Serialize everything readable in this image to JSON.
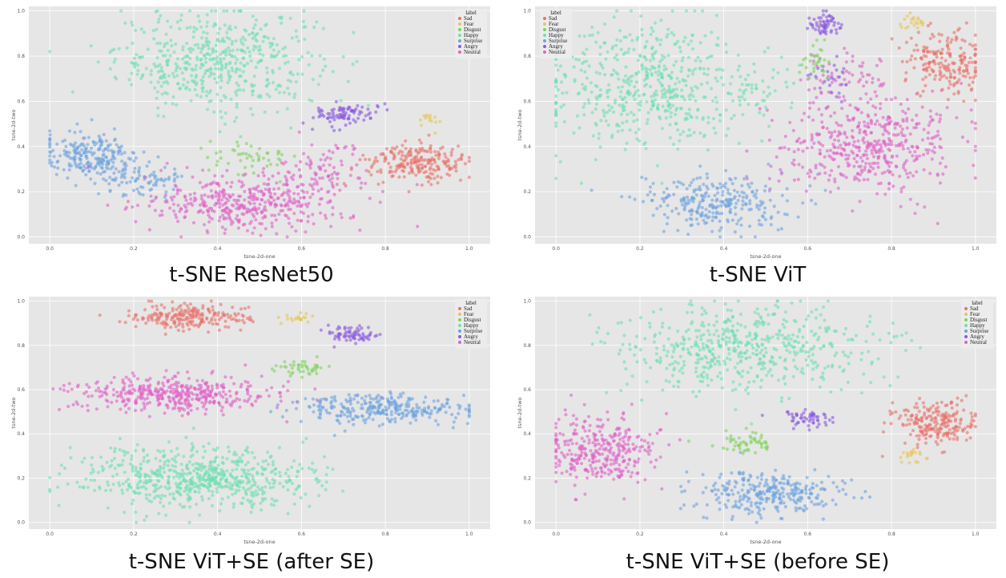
{
  "legend": {
    "title": "label",
    "classes": [
      "Sad",
      "Fear",
      "Disgust",
      "Happy",
      "Surprise",
      "Angry",
      "Neutral"
    ],
    "colors": [
      "#e8736b",
      "#e6c65a",
      "#7fd35f",
      "#6fe0b3",
      "#6ea3e0",
      "#8a5ae0",
      "#e062c8"
    ]
  },
  "chart_data": [
    {
      "type": "scatter",
      "caption": "t-SNE ResNet50",
      "xlabel": "tsne-2d-one",
      "ylabel": "tsne-2d-two",
      "xlim": [
        -0.05,
        1.05
      ],
      "ylim": [
        -0.03,
        1.02
      ],
      "xticks": [
        "0.0",
        "0.2",
        "0.4",
        "0.6",
        "0.8",
        "1.0"
      ],
      "yticks": [
        "0.0",
        "0.2",
        "0.4",
        "0.6",
        "0.8",
        "1.0"
      ],
      "grid": true,
      "legend_position": "top-right",
      "clusters": [
        {
          "label": "Happy",
          "cx": 0.4,
          "cy": 0.78,
          "sx": 0.12,
          "sy": 0.11,
          "n": 520
        },
        {
          "label": "Surprise",
          "cx": 0.1,
          "cy": 0.36,
          "sx": 0.06,
          "sy": 0.05,
          "n": 230
        },
        {
          "label": "Surprise",
          "cx": 0.22,
          "cy": 0.24,
          "sx": 0.05,
          "sy": 0.04,
          "n": 80
        },
        {
          "label": "Neutral",
          "cx": 0.47,
          "cy": 0.15,
          "sx": 0.12,
          "sy": 0.06,
          "n": 420
        },
        {
          "label": "Neutral",
          "cx": 0.66,
          "cy": 0.3,
          "sx": 0.06,
          "sy": 0.05,
          "n": 90
        },
        {
          "label": "Sad",
          "cx": 0.88,
          "cy": 0.33,
          "sx": 0.06,
          "sy": 0.04,
          "n": 220
        },
        {
          "label": "Angry",
          "cx": 0.7,
          "cy": 0.54,
          "sx": 0.04,
          "sy": 0.025,
          "n": 90
        },
        {
          "label": "Fear",
          "cx": 0.91,
          "cy": 0.52,
          "sx": 0.015,
          "sy": 0.02,
          "n": 14
        },
        {
          "label": "Disgust",
          "cx": 0.48,
          "cy": 0.36,
          "sx": 0.05,
          "sy": 0.04,
          "n": 50
        }
      ]
    },
    {
      "type": "scatter",
      "caption": "t-SNE ViT",
      "xlabel": "tsne-2d-one",
      "ylabel": "tsne-2d-two",
      "xlim": [
        -0.05,
        1.05
      ],
      "ylim": [
        -0.03,
        1.02
      ],
      "xticks": [
        "0.0",
        "0.2",
        "0.4",
        "0.6",
        "0.8",
        "1.0"
      ],
      "yticks": [
        "0.0",
        "0.2",
        "0.4",
        "0.6",
        "0.8",
        "1.0"
      ],
      "grid": true,
      "legend_position": "top-left",
      "clusters": [
        {
          "label": "Happy",
          "cx": 0.2,
          "cy": 0.68,
          "sx": 0.12,
          "sy": 0.14,
          "n": 520
        },
        {
          "label": "Happy",
          "cx": 0.45,
          "cy": 0.63,
          "sx": 0.06,
          "sy": 0.07,
          "n": 60
        },
        {
          "label": "Surprise",
          "cx": 0.38,
          "cy": 0.15,
          "sx": 0.09,
          "sy": 0.06,
          "n": 280
        },
        {
          "label": "Neutral",
          "cx": 0.75,
          "cy": 0.4,
          "sx": 0.11,
          "sy": 0.11,
          "n": 480
        },
        {
          "label": "Neutral",
          "cx": 0.68,
          "cy": 0.72,
          "sx": 0.05,
          "sy": 0.06,
          "n": 60
        },
        {
          "label": "Sad",
          "cx": 0.93,
          "cy": 0.77,
          "sx": 0.05,
          "sy": 0.07,
          "n": 200
        },
        {
          "label": "Angry",
          "cx": 0.64,
          "cy": 0.94,
          "sx": 0.02,
          "sy": 0.025,
          "n": 60
        },
        {
          "label": "Angry",
          "cx": 0.65,
          "cy": 0.7,
          "sx": 0.02,
          "sy": 0.04,
          "n": 25
        },
        {
          "label": "Fear",
          "cx": 0.85,
          "cy": 0.95,
          "sx": 0.02,
          "sy": 0.015,
          "n": 22
        },
        {
          "label": "Disgust",
          "cx": 0.62,
          "cy": 0.78,
          "sx": 0.015,
          "sy": 0.05,
          "n": 30
        }
      ]
    },
    {
      "type": "scatter",
      "caption": "t-SNE ViT+SE (after SE)",
      "xlabel": "tsne-2d-one",
      "ylabel": "tsne-2d-two",
      "xlim": [
        -0.05,
        1.05
      ],
      "ylim": [
        -0.03,
        1.02
      ],
      "xticks": [
        "0.0",
        "0.2",
        "0.4",
        "0.6",
        "0.8",
        "1.0"
      ],
      "yticks": [
        "0.0",
        "0.2",
        "0.4",
        "0.6",
        "0.8",
        "1.0"
      ],
      "grid": true,
      "legend_position": "top-right",
      "clusters": [
        {
          "label": "Happy",
          "cx": 0.35,
          "cy": 0.2,
          "sx": 0.14,
          "sy": 0.07,
          "n": 650
        },
        {
          "label": "Neutral",
          "cx": 0.3,
          "cy": 0.58,
          "sx": 0.12,
          "sy": 0.04,
          "n": 420
        },
        {
          "label": "Sad",
          "cx": 0.33,
          "cy": 0.93,
          "sx": 0.07,
          "sy": 0.03,
          "n": 220
        },
        {
          "label": "Surprise",
          "cx": 0.8,
          "cy": 0.51,
          "sx": 0.1,
          "sy": 0.035,
          "n": 300
        },
        {
          "label": "Angry",
          "cx": 0.72,
          "cy": 0.85,
          "sx": 0.03,
          "sy": 0.02,
          "n": 70
        },
        {
          "label": "Disgust",
          "cx": 0.6,
          "cy": 0.7,
          "sx": 0.03,
          "sy": 0.02,
          "n": 45
        },
        {
          "label": "Fear",
          "cx": 0.59,
          "cy": 0.92,
          "sx": 0.02,
          "sy": 0.01,
          "n": 20
        }
      ]
    },
    {
      "type": "scatter",
      "caption": "t-SNE ViT+SE (before SE)",
      "xlabel": "tsne-2d-one",
      "ylabel": "tsne-2d-two",
      "xlim": [
        -0.05,
        1.05
      ],
      "ylim": [
        -0.03,
        1.02
      ],
      "xticks": [
        "0.0",
        "0.2",
        "0.4",
        "0.6",
        "0.8",
        "1.0"
      ],
      "yticks": [
        "0.0",
        "0.2",
        "0.4",
        "0.6",
        "0.8",
        "1.0"
      ],
      "grid": true,
      "legend_position": "top-right",
      "clusters": [
        {
          "label": "Happy",
          "cx": 0.45,
          "cy": 0.78,
          "sx": 0.15,
          "sy": 0.1,
          "n": 560
        },
        {
          "label": "Neutral",
          "cx": 0.1,
          "cy": 0.32,
          "sx": 0.07,
          "sy": 0.08,
          "n": 330
        },
        {
          "label": "Surprise",
          "cx": 0.5,
          "cy": 0.13,
          "sx": 0.09,
          "sy": 0.05,
          "n": 300
        },
        {
          "label": "Sad",
          "cx": 0.91,
          "cy": 0.45,
          "sx": 0.05,
          "sy": 0.05,
          "n": 220
        },
        {
          "label": "Angry",
          "cx": 0.6,
          "cy": 0.47,
          "sx": 0.03,
          "sy": 0.02,
          "n": 55
        },
        {
          "label": "Disgust",
          "cx": 0.46,
          "cy": 0.36,
          "sx": 0.04,
          "sy": 0.025,
          "n": 55
        },
        {
          "label": "Fear",
          "cx": 0.85,
          "cy": 0.3,
          "sx": 0.015,
          "sy": 0.02,
          "n": 20
        }
      ]
    }
  ]
}
